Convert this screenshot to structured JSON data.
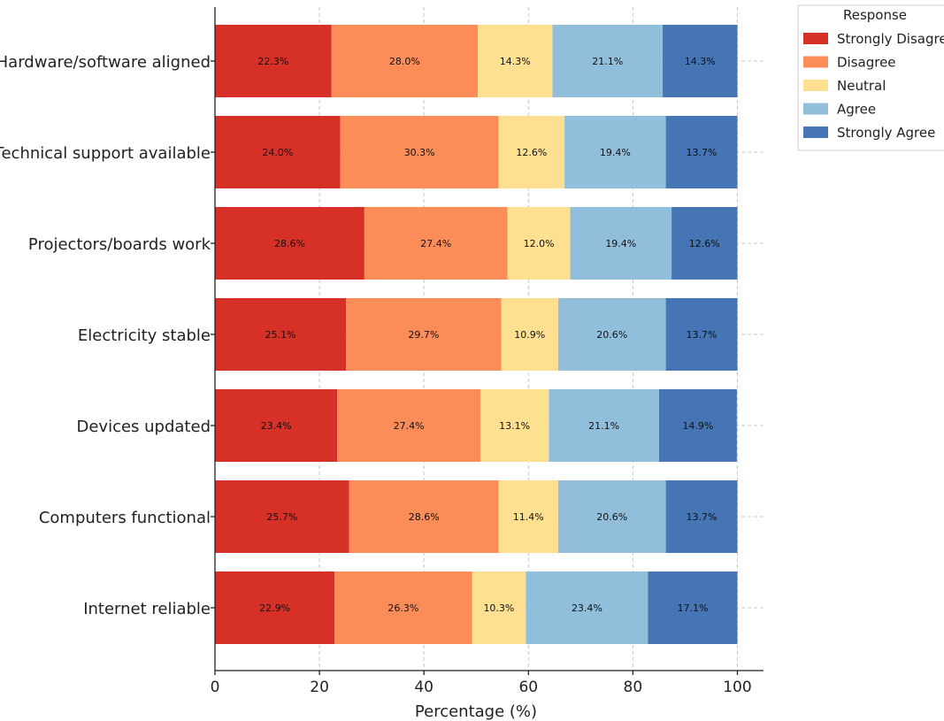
{
  "chart_data": {
    "type": "bar",
    "orientation": "horizontal",
    "stacked": true,
    "categories": [
      "Hardware/software aligned",
      "Technical support available",
      "Projectors/boards work",
      "Electricity stable",
      "Devices updated",
      "Computers functional",
      "Internet reliable"
    ],
    "series": [
      {
        "name": "Strongly Disagree",
        "color": "#d73027",
        "values": [
          22.3,
          24.0,
          28.6,
          25.1,
          23.4,
          25.7,
          22.9
        ],
        "labels": [
          "22.3%",
          "24.0%",
          "28.6%",
          "25.1%",
          "23.4%",
          "25.7%",
          "22.9%"
        ]
      },
      {
        "name": "Disagree",
        "color": "#fc8d59",
        "values": [
          28.0,
          30.3,
          27.4,
          29.7,
          27.4,
          28.6,
          26.3
        ],
        "labels": [
          "28.0%",
          "30.3%",
          "27.4%",
          "29.7%",
          "27.4%",
          "28.6%",
          "26.3%"
        ]
      },
      {
        "name": "Neutral",
        "color": "#fee090",
        "values": [
          14.3,
          12.6,
          12.0,
          10.9,
          13.1,
          11.4,
          10.3
        ],
        "labels": [
          "14.3%",
          "12.6%",
          "12.0%",
          "10.9%",
          "13.1%",
          "11.4%",
          "10.3%"
        ]
      },
      {
        "name": "Agree",
        "color": "#91bfdb",
        "values": [
          21.1,
          19.4,
          19.4,
          20.6,
          21.1,
          20.6,
          23.4
        ],
        "labels": [
          "21.1%",
          "19.4%",
          "19.4%",
          "20.6%",
          "21.1%",
          "20.6%",
          "23.4%"
        ]
      },
      {
        "name": "Strongly Agree",
        "color": "#4575b4",
        "values": [
          14.3,
          13.7,
          12.6,
          13.7,
          14.9,
          13.7,
          17.1
        ],
        "labels": [
          "14.3%",
          "13.7%",
          "12.6%",
          "13.7%",
          "14.9%",
          "13.7%",
          "17.1%"
        ]
      }
    ],
    "xlabel": "Percentage (%)",
    "ylabel": "",
    "xlim": [
      0,
      105
    ],
    "xticks": [
      0,
      20,
      40,
      60,
      80,
      100
    ],
    "xtick_labels": [
      "0",
      "20",
      "40",
      "60",
      "80",
      "100"
    ],
    "grid": true,
    "legend": {
      "title": "Response",
      "placement": "top-right outside"
    }
  }
}
